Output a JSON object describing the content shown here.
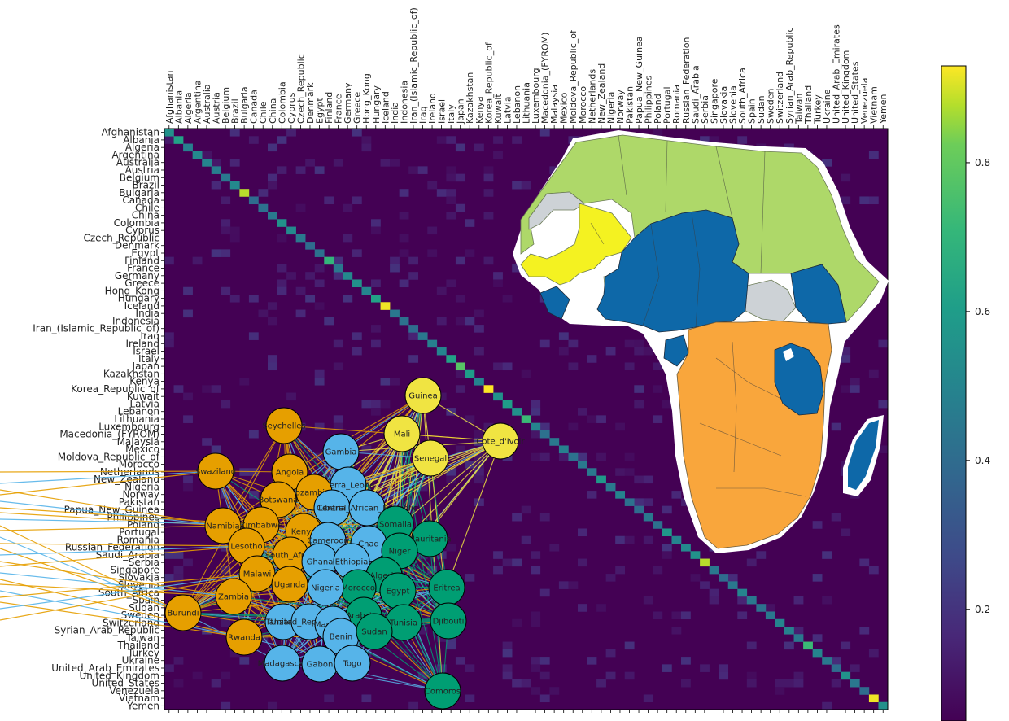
{
  "chart_data": [
    {
      "type": "heatmap",
      "countries": [
        "Afghanistan",
        "Albania",
        "Algeria",
        "Argentina",
        "Australia",
        "Austria",
        "Belgium",
        "Brazil",
        "Bulgaria",
        "Canada",
        "Chile",
        "China",
        "Colombia",
        "Cyprus",
        "Czech_Republic",
        "Denmark",
        "Egypt",
        "Finland",
        "France",
        "Germany",
        "Greece",
        "Hong_Kong",
        "Hungary",
        "Iceland",
        "India",
        "Indonesia",
        "Iran_(Islamic_Republic_of)",
        "Iraq",
        "Ireland",
        "Israel",
        "Italy",
        "Japan",
        "Kazakhstan",
        "Kenya",
        "Korea_Republic_of",
        "Kuwait",
        "Latvia",
        "Lebanon",
        "Lithuania",
        "Luxembourg",
        "Macedonia_(FYROM)",
        "Malaysia",
        "Mexico",
        "Moldova_Republic_of",
        "Morocco",
        "Netherlands",
        "New_Zealand",
        "Nigeria",
        "Norway",
        "Pakistan",
        "Papua_New_Guinea",
        "Philippines",
        "Poland",
        "Portugal",
        "Romania",
        "Russian_Federation",
        "Saudi_Arabia",
        "Serbia",
        "Singapore",
        "Slovakia",
        "Slovenia",
        "South_Africa",
        "Spain",
        "Sudan",
        "Sweden",
        "Switzerland",
        "Syrian_Arab_Republic",
        "Taiwan",
        "Thailand",
        "Turkey",
        "Ukraine",
        "United_Arab_Emirates",
        "United_Kingdom",
        "United_States",
        "Venezuela",
        "Vietnam",
        "Yemen"
      ],
      "diagonal_values": [
        0.55,
        0.62,
        0.48,
        0.52,
        0.5,
        0.47,
        0.45,
        0.52,
        0.88,
        0.4,
        0.42,
        0.45,
        0.55,
        0.52,
        0.45,
        0.4,
        0.42,
        0.7,
        0.45,
        0.52,
        0.55,
        0.5,
        0.62,
        0.92,
        0.45,
        0.42,
        0.4,
        0.45,
        0.48,
        0.5,
        0.62,
        0.78,
        0.6,
        0.5,
        0.95,
        0.55,
        0.6,
        0.55,
        0.72,
        0.5,
        0.42,
        0.45,
        0.48,
        0.42,
        0.45,
        0.45,
        0.58,
        0.45,
        0.5,
        0.42,
        0.4,
        0.45,
        0.42,
        0.58,
        0.5,
        0.52,
        0.55,
        0.88,
        0.45,
        0.4,
        0.45,
        0.5,
        0.45,
        0.42,
        0.45,
        0.5,
        0.48,
        0.45,
        0.72,
        0.5,
        0.45,
        0.4,
        0.55,
        0.45,
        0.4,
        0.92,
        0.55
      ],
      "background_value": 0.05,
      "colorscale": "viridis",
      "colorbar": {
        "min": 0.05,
        "max": 0.93,
        "ticks": [
          0.2,
          0.4,
          0.6,
          0.8
        ]
      }
    },
    {
      "type": "network",
      "communities": [
        {
          "color": "#E69F00",
          "nodes": [
            "Seychelles",
            "Angola",
            "Swaziland",
            "Botswana",
            "Mozambique",
            "Namibia",
            "Zimbabwe",
            "Kenya",
            "Lesotho",
            "South_Africa",
            "Malawi",
            "Uganda",
            "Zambia",
            "Burundi",
            "Rwanda"
          ]
        },
        {
          "color": "#56B4E9",
          "nodes": [
            "Gambia",
            "Sierra_Leone",
            "Liberia",
            "Central_African_Republic",
            "Cameroon",
            "Chad",
            "Ghana",
            "Ethiopia",
            "Nigeria",
            "Tanzania",
            "United_Republic_of",
            "Benin",
            "Madagascar",
            "Gabon",
            "Togo"
          ]
        },
        {
          "color": "#F0E442",
          "nodes": [
            "Guinea",
            "Mali",
            "Cote_d'Ivoire",
            "Senegal"
          ]
        },
        {
          "color": "#009E73",
          "nodes": [
            "Somalia",
            "Mauritania",
            "Niger",
            "Algeria",
            "Morocco",
            "Egypt",
            "Eritrea",
            "Libyan_Arab_Jamahiriya",
            "Tunisia",
            "Sudan",
            "Djibouti",
            "Comoros"
          ]
        }
      ],
      "node_labels": [
        "Guinea",
        "Seychelles",
        "Mali",
        "Cote_d'Ivoir",
        "Gambia",
        "Senegal",
        "Swaziland",
        "Angola",
        "Sierra_Leone",
        "Mozambique",
        "Botswana",
        "Liberia",
        "Central_African_Republic",
        "Namibia",
        "Zimbabwe",
        "Somalia",
        "Kenya",
        "Mauritania",
        "Lesotho",
        "Cameroon",
        "Chad",
        "Niger",
        "South_Africa",
        "Ghana",
        "Ethiopia",
        "Malawi",
        "Algeria",
        "Uganda",
        "Zambia",
        "Morocco",
        "Egypt",
        "Nigeria",
        "Eritrea",
        "Burundi",
        "Libyan_Arab_Jamahiriya",
        "Tanzania",
        "United_Republic_of",
        "Mauritius",
        "Tunisia",
        "Djibouti",
        "Rwanda",
        "Benin",
        "Sudan",
        "Madagascar",
        "Gabon",
        "Togo",
        "Comoros"
      ]
    }
  ],
  "map": {
    "legend_colors": {
      "orange": "#F9A63C",
      "blue": "#0E68A8",
      "yellow": "#F4F221",
      "green": "#AED869",
      "grey": "#CDD2D6"
    }
  }
}
